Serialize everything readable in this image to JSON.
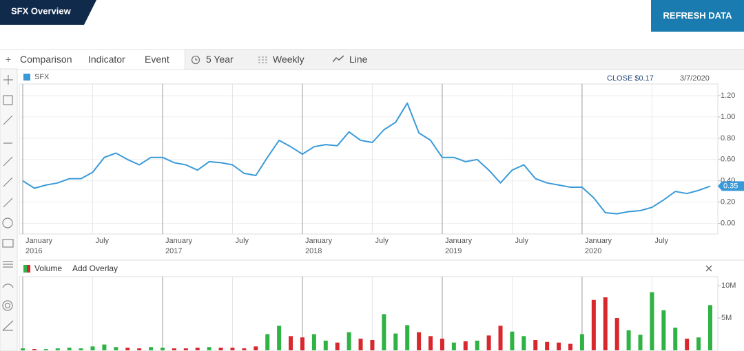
{
  "header": {
    "title": "SFX Overview",
    "button": "REFRESH DATA"
  },
  "toolbar": {
    "items": [
      "Comparison",
      "Indicator",
      "Event"
    ],
    "settings": [
      "5 Year",
      "Weekly",
      "Line"
    ]
  },
  "chart_data": [
    {
      "type": "line",
      "close_label": "CLOSE $0.17",
      "date_label": "3/7/2020",
      "x": [
        "2016-01",
        "2016-02",
        "2016-03",
        "2016-04",
        "2016-05",
        "2016-06",
        "2016-07",
        "2016-08",
        "2016-09",
        "2016-10",
        "2016-11",
        "2016-12",
        "2017-01",
        "2017-02",
        "2017-03",
        "2017-04",
        "2017-05",
        "2017-06",
        "2017-07",
        "2017-08",
        "2017-09",
        "2017-10",
        "2017-11",
        "2017-12",
        "2018-01",
        "2018-02",
        "2018-03",
        "2018-04",
        "2018-05",
        "2018-06",
        "2018-07",
        "2018-08",
        "2018-09",
        "2018-10",
        "2018-11",
        "2018-12",
        "2019-01",
        "2019-02",
        "2019-03",
        "2019-04",
        "2019-05",
        "2019-06",
        "2019-07",
        "2019-08",
        "2019-09",
        "2019-10",
        "2019-11",
        "2019-12",
        "2020-01",
        "2020-02",
        "2020-03",
        "2020-04",
        "2020-05",
        "2020-06",
        "2020-07",
        "2020-08",
        "2020-09",
        "2020-10",
        "2020-11",
        "2020-12"
      ],
      "series": [
        {
          "name": "SFX",
          "color": "#3a9ad9",
          "values": [
            0.4,
            0.33,
            0.36,
            0.38,
            0.42,
            0.42,
            0.48,
            0.62,
            0.66,
            0.6,
            0.55,
            0.62,
            0.62,
            0.57,
            0.55,
            0.5,
            0.58,
            0.57,
            0.55,
            0.47,
            0.45,
            0.62,
            0.78,
            0.72,
            0.65,
            0.72,
            0.74,
            0.73,
            0.86,
            0.78,
            0.76,
            0.88,
            0.95,
            1.13,
            0.85,
            0.78,
            0.62,
            0.62,
            0.58,
            0.6,
            0.5,
            0.38,
            0.5,
            0.55,
            0.42,
            0.38,
            0.36,
            0.34,
            0.34,
            0.24,
            0.1,
            0.09,
            0.11,
            0.12,
            0.15,
            0.22,
            0.3,
            0.28,
            0.31,
            0.35
          ]
        }
      ],
      "xlim": [
        "2016-01",
        "2020-12"
      ],
      "xticks": [
        {
          "value": "2016-01",
          "label": "January 2016"
        },
        {
          "value": "2016-07",
          "label": "July"
        },
        {
          "value": "2017-01",
          "label": "January 2017"
        },
        {
          "value": "2017-07",
          "label": "July"
        },
        {
          "value": "2018-01",
          "label": "January 2018"
        },
        {
          "value": "2018-07",
          "label": "July"
        },
        {
          "value": "2019-01",
          "label": "January 2019"
        },
        {
          "value": "2019-07",
          "label": "July"
        },
        {
          "value": "2020-01",
          "label": "January 2020"
        },
        {
          "value": "2020-07",
          "label": "July"
        }
      ],
      "ylim": [
        -0.1,
        1.31
      ],
      "yticks": [
        {
          "value": 0,
          "label": "0.00"
        },
        {
          "value": 0.2,
          "label": "0.20"
        },
        {
          "value": 0.4,
          "label": "0.40"
        },
        {
          "value": 0.6,
          "label": "0.60"
        },
        {
          "value": 0.8,
          "label": "0.80"
        },
        {
          "value": 1,
          "label": "1.00"
        },
        {
          "value": 1.2,
          "label": "1.20"
        }
      ],
      "grid": true
    },
    {
      "type": "bar",
      "overlay_label": "Add Overlay",
      "x": [
        "2016-01",
        "2016-02",
        "2016-03",
        "2016-04",
        "2016-05",
        "2016-06",
        "2016-07",
        "2016-08",
        "2016-09",
        "2016-10",
        "2016-11",
        "2016-12",
        "2017-01",
        "2017-02",
        "2017-03",
        "2017-04",
        "2017-05",
        "2017-06",
        "2017-07",
        "2017-08",
        "2017-09",
        "2017-10",
        "2017-11",
        "2017-12",
        "2018-01",
        "2018-02",
        "2018-03",
        "2018-04",
        "2018-05",
        "2018-06",
        "2018-07",
        "2018-08",
        "2018-09",
        "2018-10",
        "2018-11",
        "2018-12",
        "2019-01",
        "2019-02",
        "2019-03",
        "2019-04",
        "2019-05",
        "2019-06",
        "2019-07",
        "2019-08",
        "2019-09",
        "2019-10",
        "2019-11",
        "2019-12",
        "2020-01",
        "2020-02",
        "2020-03",
        "2020-04",
        "2020-05",
        "2020-06",
        "2020-07",
        "2020-08",
        "2020-09",
        "2020-10",
        "2020-11",
        "2020-12"
      ],
      "series": [
        {
          "name": "Volume",
          "values": [
            300000,
            200000,
            200000,
            300000,
            400000,
            300000,
            600000,
            900000,
            500000,
            400000,
            300000,
            500000,
            400000,
            300000,
            300000,
            400000,
            500000,
            400000,
            400000,
            300000,
            600000,
            2500000,
            3800000,
            2200000,
            2000000,
            2500000,
            1500000,
            1200000,
            2800000,
            1800000,
            1600000,
            5600000,
            2600000,
            3900000,
            2800000,
            2200000,
            1800000,
            1200000,
            1400000,
            1500000,
            2300000,
            3800000,
            2900000,
            2200000,
            1600000,
            1300000,
            1200000,
            1000000,
            2500000,
            7800000,
            8200000,
            5000000,
            3100000,
            2400000,
            9000000,
            6200000,
            3500000,
            1800000,
            2000000,
            7000000
          ],
          "colors": [
            "#2fb344",
            "#d9272e",
            "#2fb344",
            "#2fb344",
            "#2fb344",
            "#2fb344",
            "#2fb344",
            "#2fb344",
            "#2fb344",
            "#d9272e",
            "#d9272e",
            "#2fb344",
            "#2fb344",
            "#d9272e",
            "#d9272e",
            "#d9272e",
            "#2fb344",
            "#d9272e",
            "#d9272e",
            "#d9272e",
            "#d9272e",
            "#2fb344",
            "#2fb344",
            "#d9272e",
            "#d9272e",
            "#2fb344",
            "#2fb344",
            "#d9272e",
            "#2fb344",
            "#d9272e",
            "#d9272e",
            "#2fb344",
            "#2fb344",
            "#2fb344",
            "#d9272e",
            "#d9272e",
            "#d9272e",
            "#2fb344",
            "#d9272e",
            "#2fb344",
            "#d9272e",
            "#d9272e",
            "#2fb344",
            "#2fb344",
            "#d9272e",
            "#d9272e",
            "#d9272e",
            "#d9272e",
            "#2fb344",
            "#d9272e",
            "#d9272e",
            "#d9272e",
            "#2fb344",
            "#2fb344",
            "#2fb344",
            "#2fb344",
            "#2fb344",
            "#d9272e",
            "#2fb344",
            "#2fb344"
          ]
        }
      ],
      "xlim": [
        "2016-01",
        "2020-12"
      ],
      "ylim": [
        0,
        11400000
      ],
      "yticks": [
        {
          "value": 5000000,
          "label": "5M"
        },
        {
          "value": 10000000,
          "label": "10M"
        }
      ]
    }
  ]
}
